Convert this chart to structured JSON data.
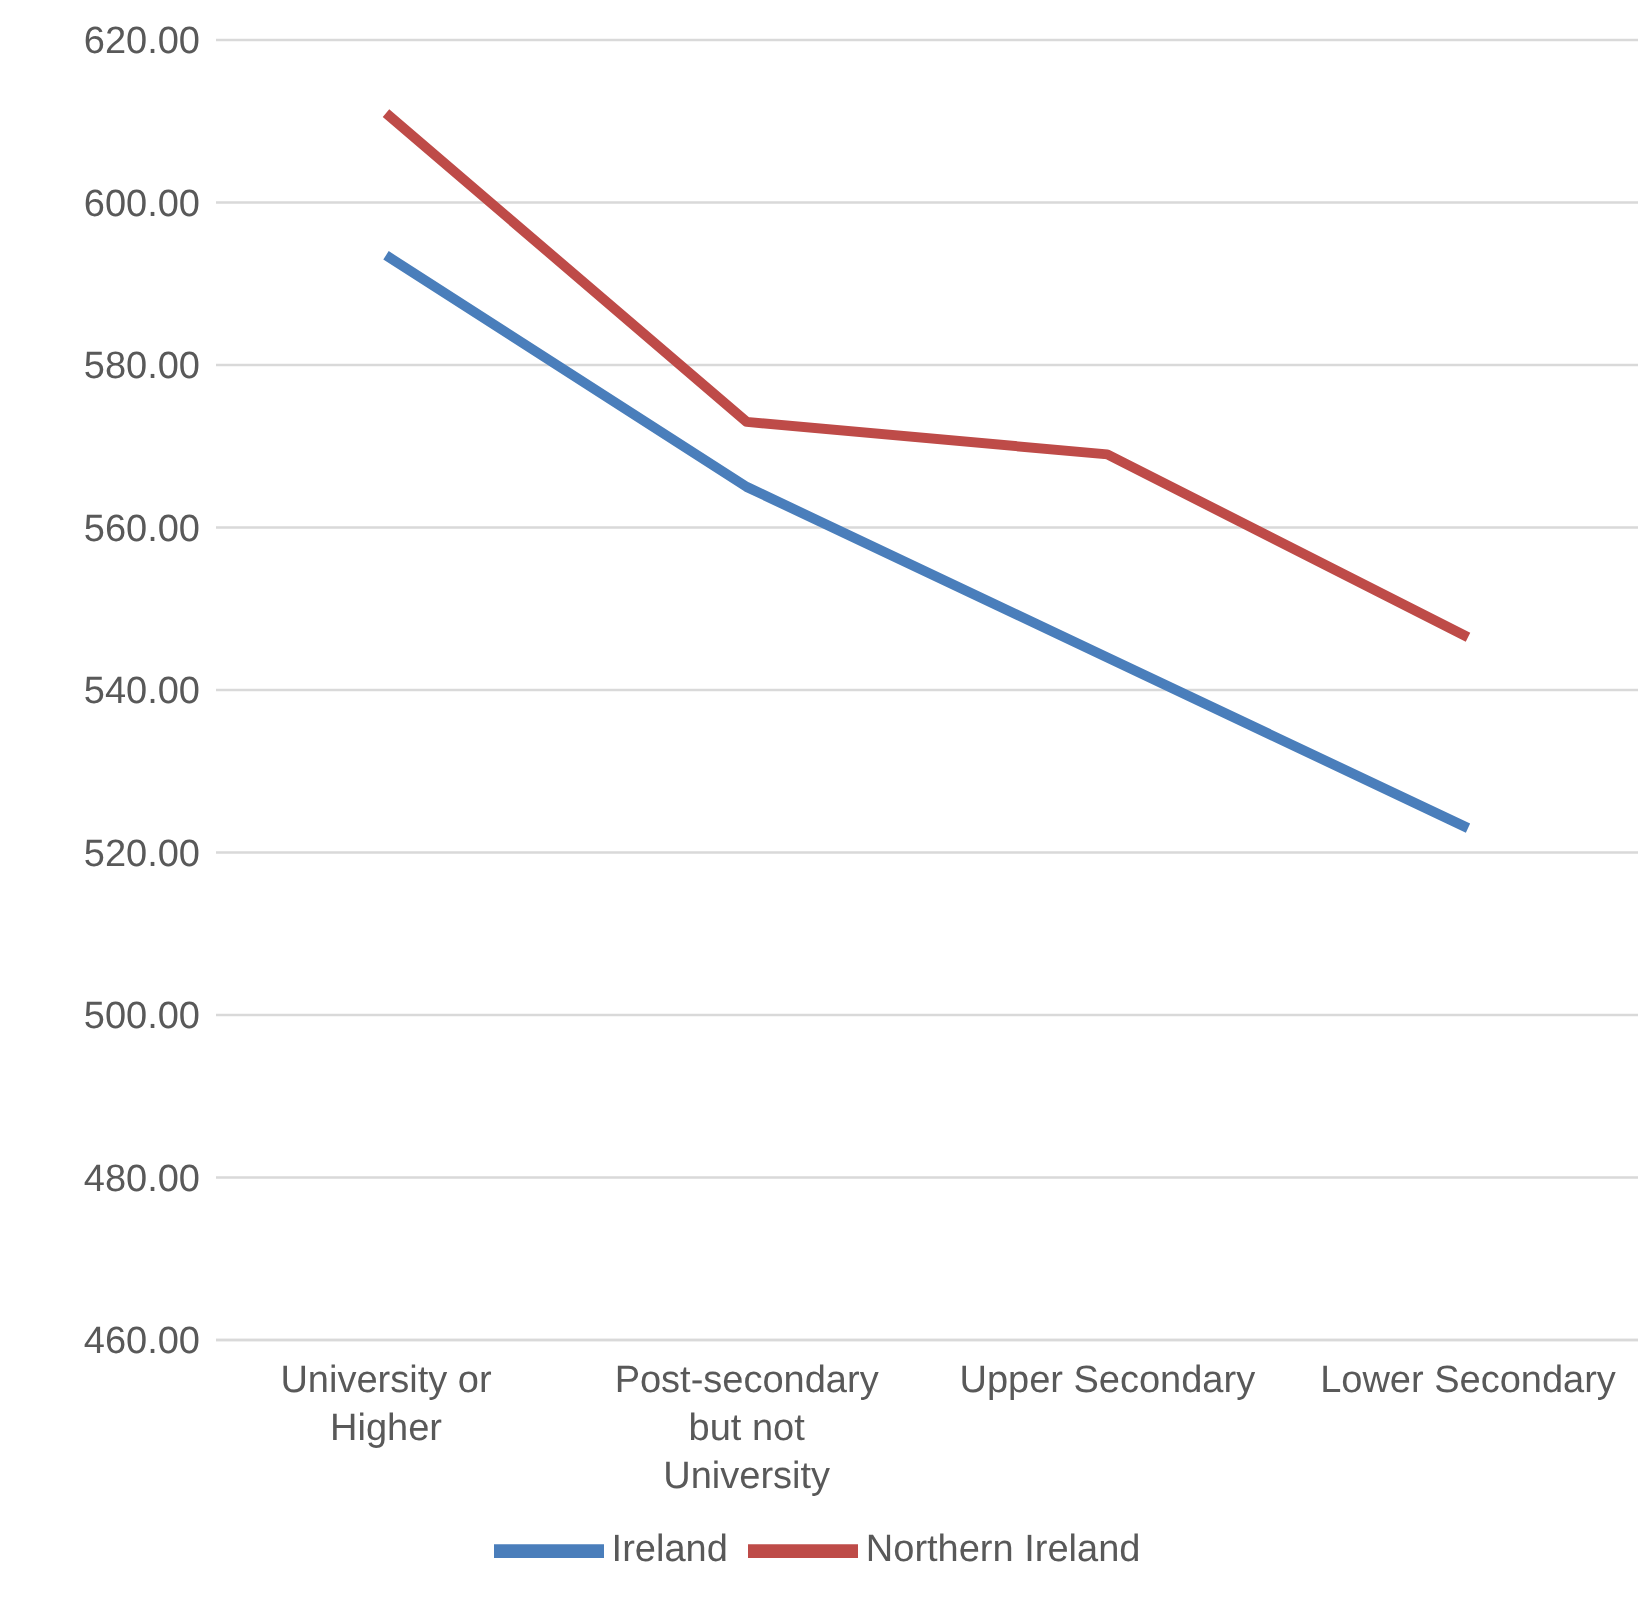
{
  "chart_data": {
    "type": "line",
    "categories": [
      "University or Higher",
      "Post-secondary but not University",
      "Upper Secondary",
      "Lower Secondary"
    ],
    "series": [
      {
        "name": "Ireland",
        "color": "#4a7ebb",
        "values": [
          593.5,
          565,
          544,
          523
        ]
      },
      {
        "name": "Northern Ireland",
        "color": "#be4b48",
        "values": [
          611,
          573,
          569,
          546.5
        ]
      }
    ],
    "ylim": [
      460,
      620
    ],
    "yticks": [
      {
        "value": 460,
        "label": "460.00"
      },
      {
        "value": 480,
        "label": "480.00"
      },
      {
        "value": 500,
        "label": "500.00"
      },
      {
        "value": 520,
        "label": "520.00"
      },
      {
        "value": 540,
        "label": "540.00"
      },
      {
        "value": 560,
        "label": "560.00"
      },
      {
        "value": 580,
        "label": "580.00"
      },
      {
        "value": 600,
        "label": "600.00"
      },
      {
        "value": 620,
        "label": "620.00"
      }
    ],
    "grid": "y",
    "legend": "bottom",
    "marker": "none",
    "line_style": "solid"
  }
}
